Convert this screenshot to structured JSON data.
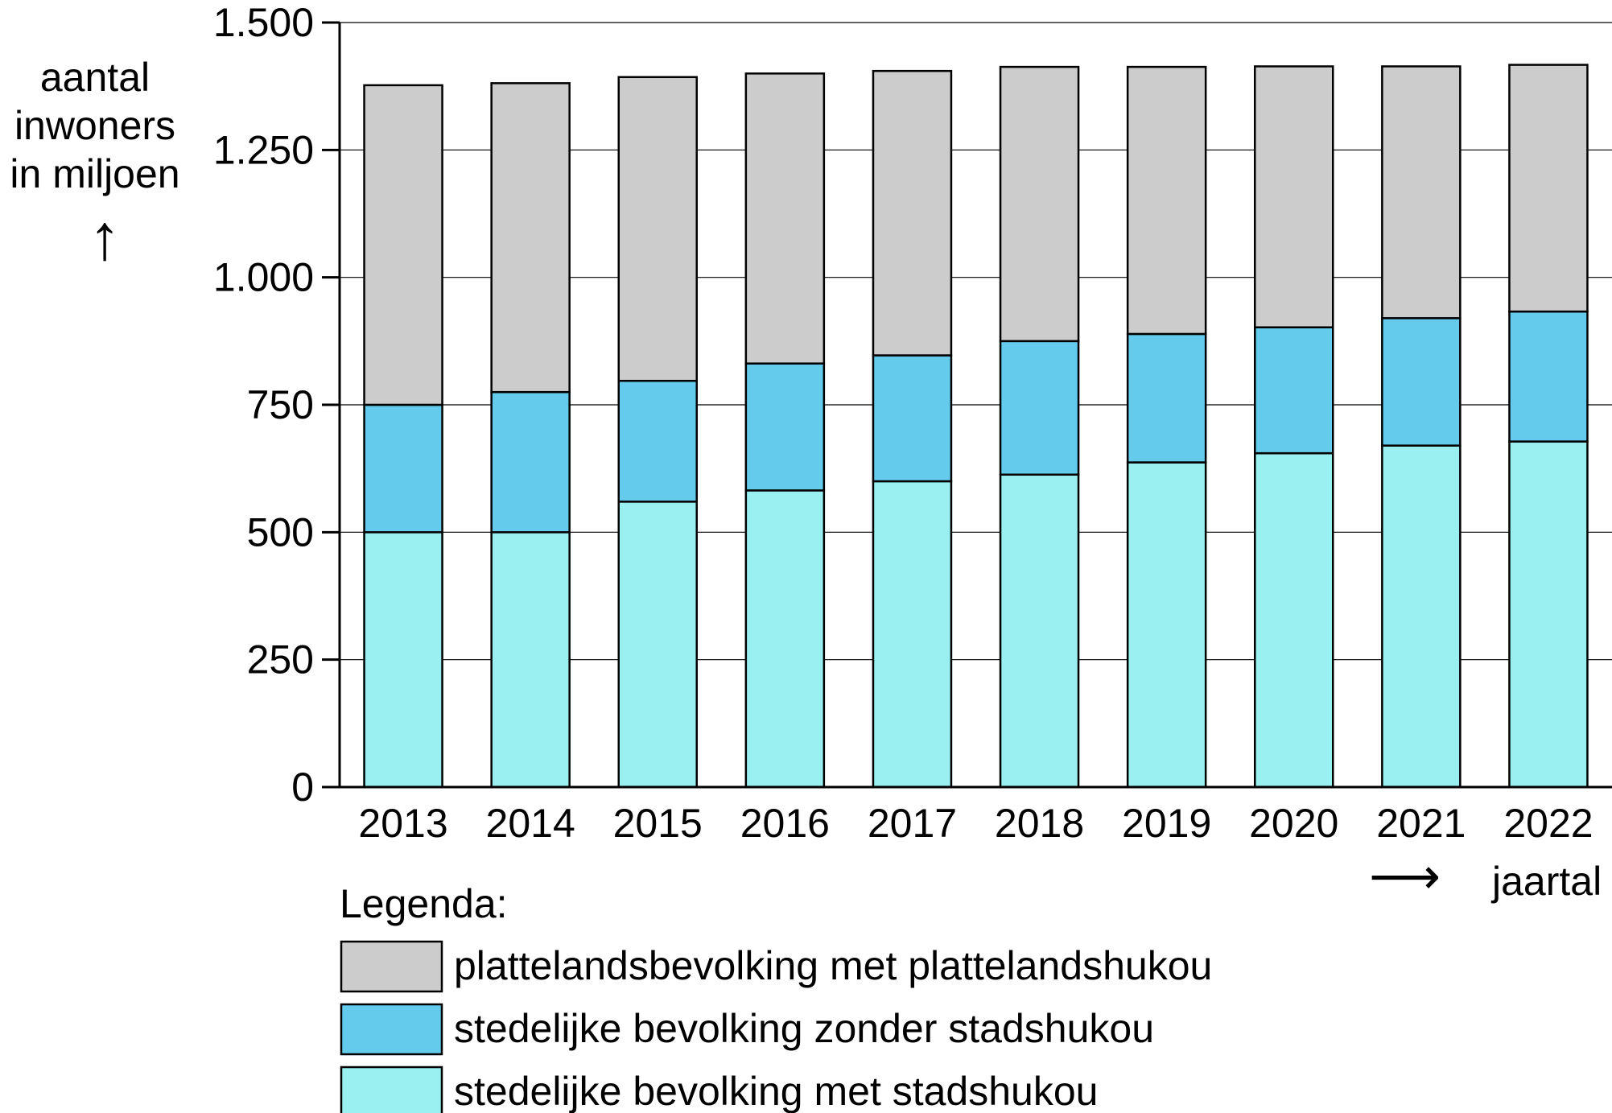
{
  "chart_data": {
    "type": "bar",
    "stacked": true,
    "ylabel_lines": [
      "aantal",
      "inwoners",
      "in miljoen"
    ],
    "ylabel_arrow": "↑",
    "xlabel": "jaartal",
    "xlabel_arrow": "⟶",
    "ylim": [
      0,
      1500
    ],
    "yticks": [
      0,
      250,
      500,
      750,
      1000,
      1250,
      1500
    ],
    "ytick_labels": [
      "0",
      "250",
      "500",
      "750",
      "1.000",
      "1.250",
      "1.500"
    ],
    "categories": [
      "2013",
      "2014",
      "2015",
      "2016",
      "2017",
      "2018",
      "2019",
      "2020",
      "2021",
      "2022"
    ],
    "series": [
      {
        "name": "stedelijke bevolking met stadshukou",
        "color": "#9af0f0",
        "values": [
          500,
          500,
          560,
          582,
          600,
          613,
          637,
          655,
          670,
          678
        ]
      },
      {
        "name": "stedelijke bevolking zonder stadshukou",
        "color": "#64cbec",
        "values": [
          250,
          275,
          237,
          249,
          247,
          262,
          252,
          247,
          250,
          255
        ]
      },
      {
        "name": "plattelandsbevolking met plattelandshukou",
        "color": "#cccccc",
        "values": [
          627,
          606,
          596,
          569,
          558,
          538,
          524,
          512,
          494,
          484
        ]
      }
    ],
    "legend_title": "Legenda:",
    "legend_order": [
      2,
      1,
      0
    ],
    "grid": true
  }
}
